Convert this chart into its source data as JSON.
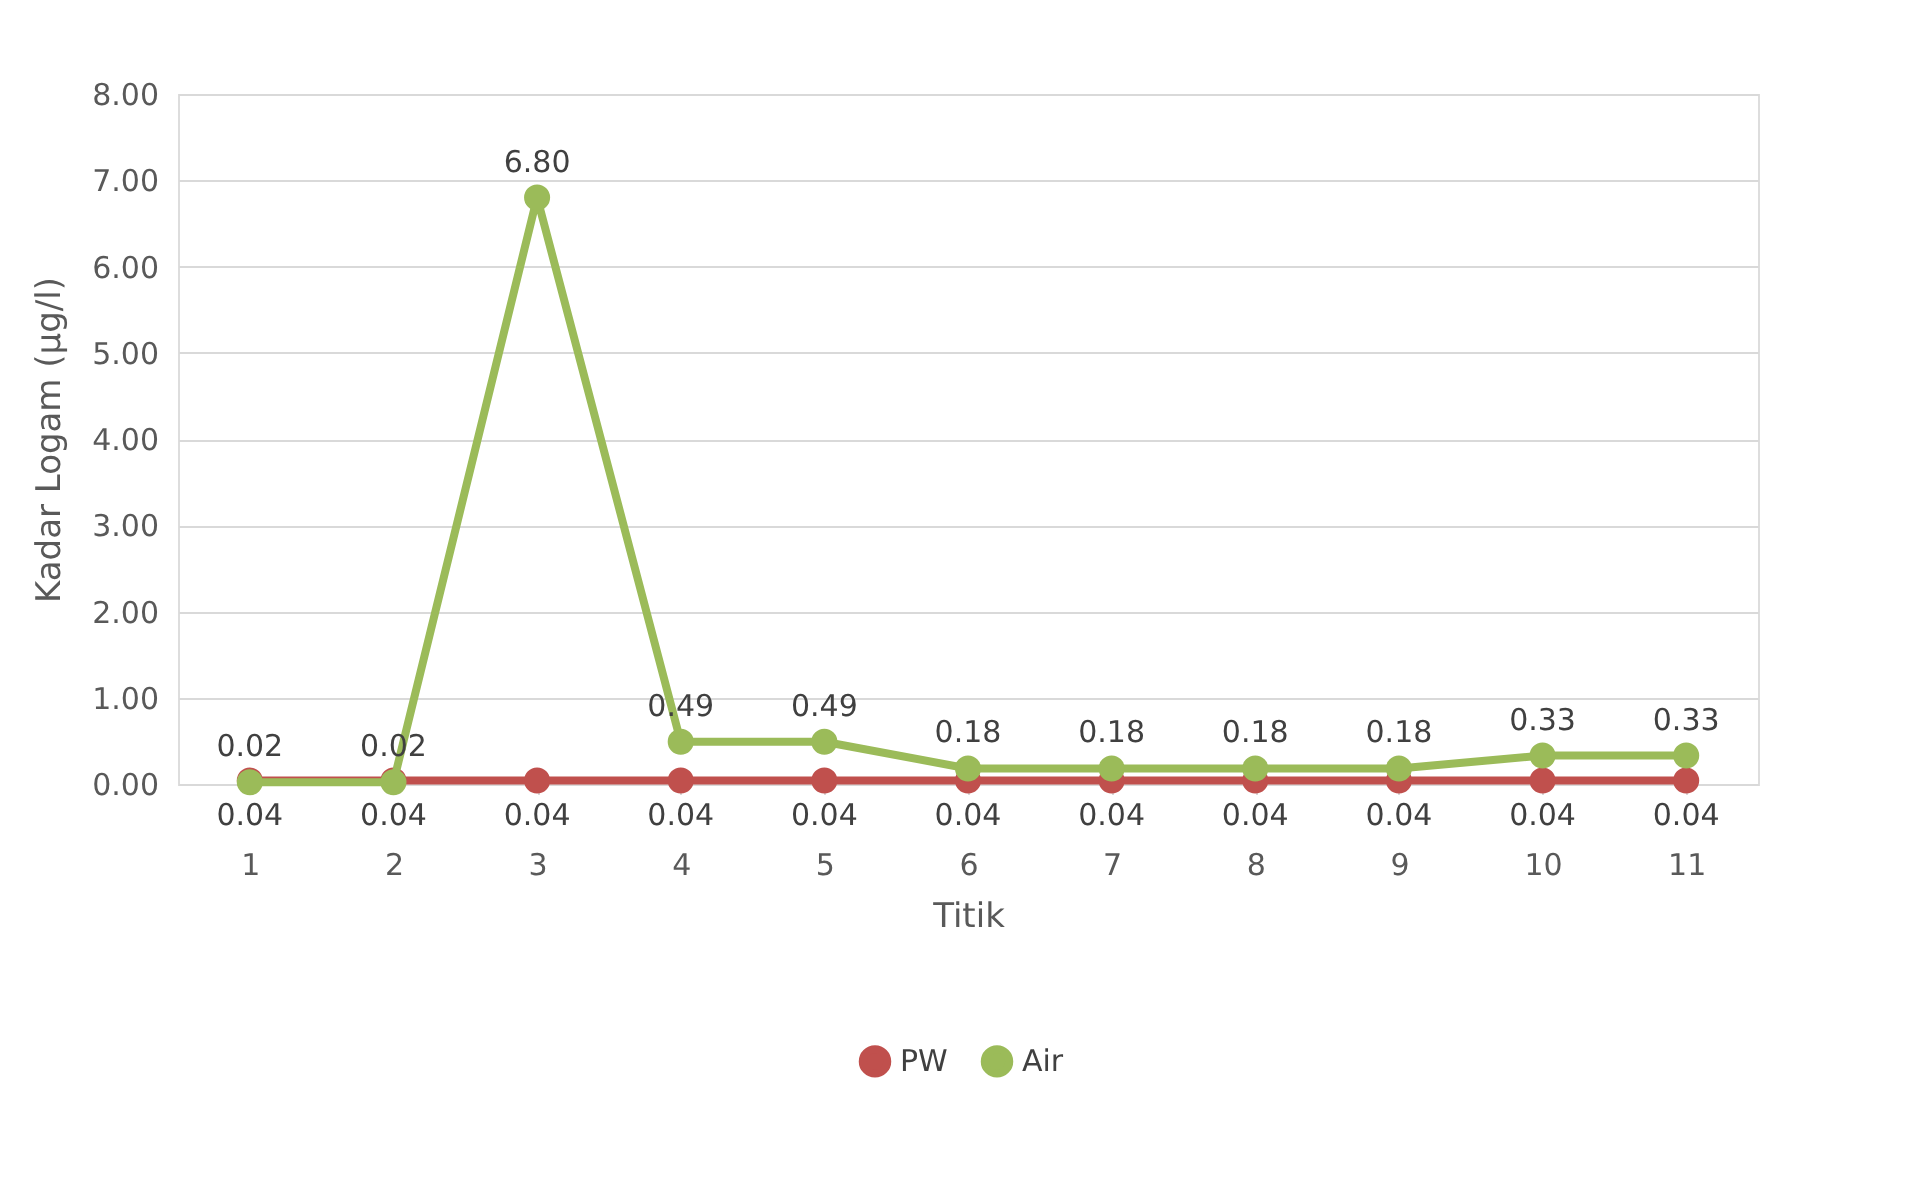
{
  "chart_data": {
    "type": "line",
    "xlabel": "Titik",
    "ylabel": "Kadar Logam (µg/l)",
    "categories": [
      "1",
      "2",
      "3",
      "4",
      "5",
      "6",
      "7",
      "8",
      "9",
      "10",
      "11"
    ],
    "series": [
      {
        "name": "PW",
        "color": "#c0504d",
        "values": [
          0.04,
          0.04,
          0.04,
          0.04,
          0.04,
          0.04,
          0.04,
          0.04,
          0.04,
          0.04,
          0.04
        ],
        "value_labels": [
          "0.04",
          "0.04",
          "0.04",
          "0.04",
          "0.04",
          "0.04",
          "0.04",
          "0.04",
          "0.04",
          "0.04",
          "0.04"
        ]
      },
      {
        "name": "Air",
        "color": "#9bbb59",
        "values": [
          0.02,
          0.02,
          6.8,
          0.49,
          0.49,
          0.18,
          0.18,
          0.18,
          0.18,
          0.33,
          0.33
        ],
        "value_labels": [
          "0.02",
          "0.02",
          "6.80",
          "0.49",
          "0.49",
          "0.18",
          "0.18",
          "0.18",
          "0.18",
          "0.33",
          "0.33"
        ]
      }
    ],
    "ylim": [
      0,
      8
    ],
    "yticks": [
      {
        "value": 0,
        "label": "0.00"
      },
      {
        "value": 1,
        "label": "1.00"
      },
      {
        "value": 2,
        "label": "2.00"
      },
      {
        "value": 3,
        "label": "3.00"
      },
      {
        "value": 4,
        "label": "4.00"
      },
      {
        "value": 5,
        "label": "5.00"
      },
      {
        "value": 6,
        "label": "6.00"
      },
      {
        "value": 7,
        "label": "7.00"
      },
      {
        "value": 8,
        "label": "8.00"
      }
    ],
    "grid": "y",
    "legend": "bottom",
    "marker": "circle",
    "line_style": "solid"
  }
}
